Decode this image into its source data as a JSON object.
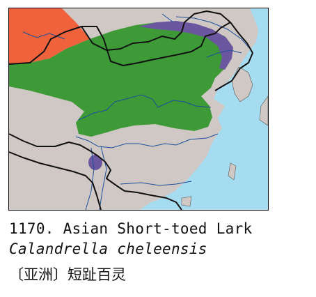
{
  "caption": {
    "species_line": "1170. Asian Short-toed Lark",
    "scientific_line": "Calandrella cheleensis",
    "chinese_line": "〔亚洲〕短趾百灵"
  },
  "map_colors": {
    "sea": "#a6dcef",
    "land": "#cfc8c4",
    "breeding_range": "#f0623c",
    "resident_range": "#3d9a36",
    "winter_range": "#6b56a0",
    "borders": "#111111",
    "rivers": "#1d4f9a"
  }
}
